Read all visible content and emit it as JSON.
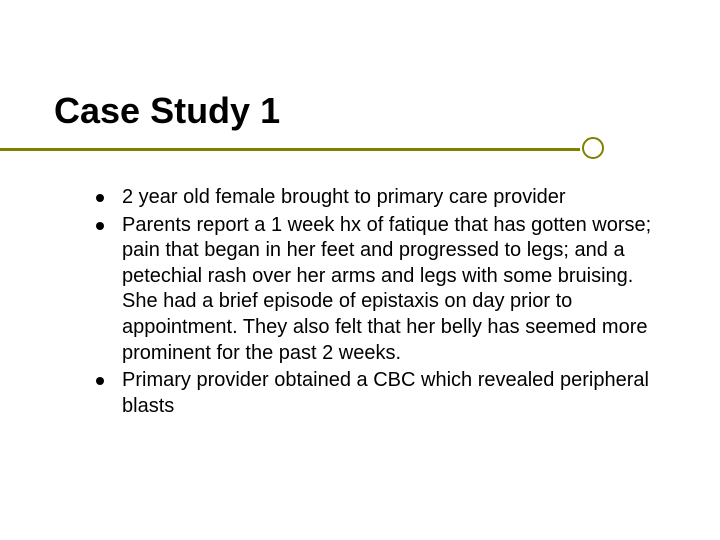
{
  "slide": {
    "title": "Case Study 1",
    "title_fontsize": 36,
    "title_color": "#000000",
    "accent_color": "#808000",
    "background_color": "#ffffff",
    "body_fontsize": 20,
    "body_color": "#000000",
    "bullets": [
      "2 year old female brought to primary care provider",
      "Parents report a 1 week hx of fatique that has gotten worse; pain that began in her feet and progressed to legs; and a petechial rash over her arms and legs with some bruising.  She had a brief episode of epistaxis on day prior to appointment. They also felt that her belly has seemed more prominent for the past 2 weeks.",
      "Primary provider obtained a CBC which revealed peripheral blasts"
    ]
  }
}
